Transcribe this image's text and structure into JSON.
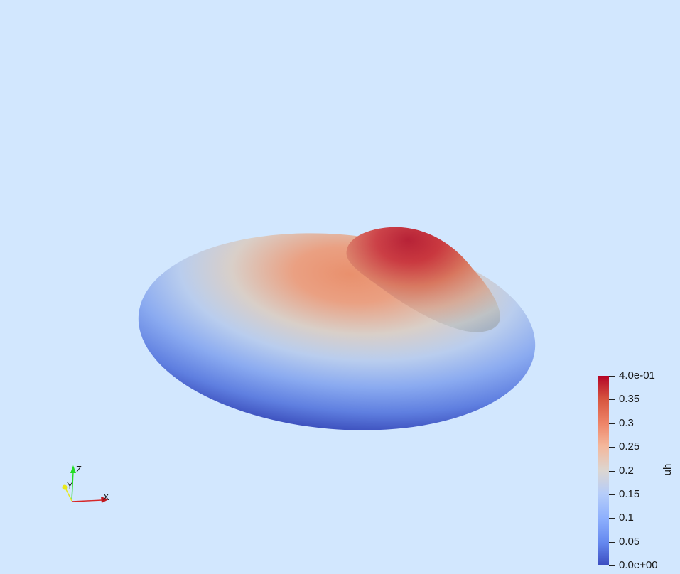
{
  "viewer": {
    "background_color": "#d2e7fe",
    "scalar_name": "uh"
  },
  "colorbar": {
    "title": "uh",
    "colormap": "coolwarm",
    "range": [
      0.0,
      0.4
    ],
    "top_color": "#b40426",
    "bottom_color": "#3b4cc0",
    "ticks": [
      {
        "value": 0.4,
        "label": "4.0e-01"
      },
      {
        "value": 0.35,
        "label": "0.35"
      },
      {
        "value": 0.3,
        "label": "0.3"
      },
      {
        "value": 0.25,
        "label": "0.25"
      },
      {
        "value": 0.2,
        "label": "0.2"
      },
      {
        "value": 0.15,
        "label": "0.15"
      },
      {
        "value": 0.1,
        "label": "0.1"
      },
      {
        "value": 0.05,
        "label": "0.05"
      },
      {
        "value": 0.0,
        "label": "0.0e+00"
      }
    ]
  },
  "axes_widget": {
    "x_label": "X",
    "y_label": "Y",
    "z_label": "Z",
    "x_color": "#d62728",
    "y_color": "#e8e81a",
    "z_color": "#22dd22"
  }
}
